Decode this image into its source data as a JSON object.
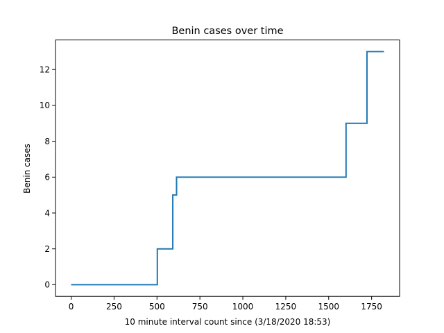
{
  "chart_data": {
    "type": "line",
    "title": "Benin cases over time",
    "xlabel": "10 minute interval count since (3/18/2020 18:53)",
    "ylabel": "Benin cases",
    "xlim": [
      -91,
      1913
    ],
    "ylim": [
      -0.65,
      13.65
    ],
    "x_ticks": [
      0,
      250,
      500,
      750,
      1000,
      1250,
      1500,
      1750
    ],
    "y_ticks": [
      0,
      2,
      4,
      6,
      8,
      10,
      12
    ],
    "grid": false,
    "series": [
      {
        "color": "#1f77b4",
        "step": "post",
        "x": [
          0,
          502,
          592,
          614,
          1601,
          1723,
          1822
        ],
        "y": [
          0,
          2,
          5,
          6,
          9,
          13,
          13
        ]
      }
    ]
  }
}
